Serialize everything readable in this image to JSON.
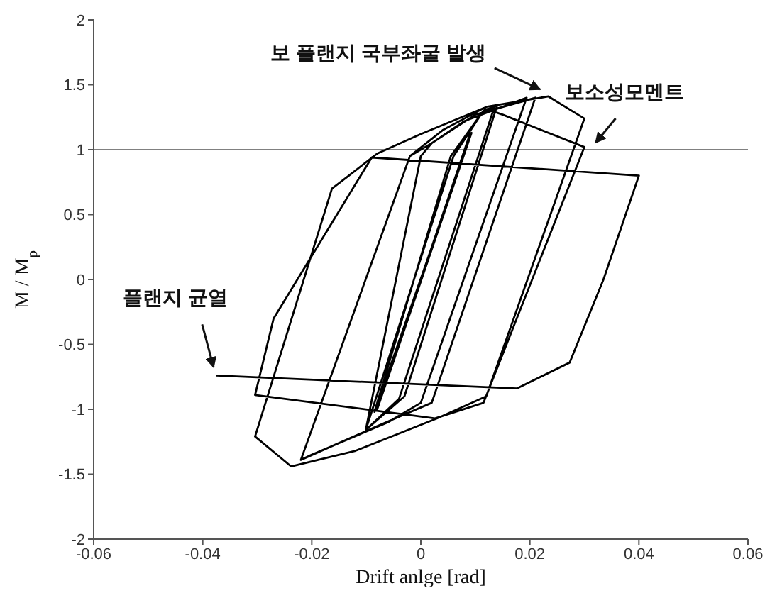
{
  "chart_data": {
    "type": "line",
    "xlabel": "Drift anlge [rad]",
    "ylabel": "M / M$_{p}$",
    "xlim": [
      -0.06,
      0.06
    ],
    "xticks": [
      -0.06,
      -0.04,
      -0.02,
      0,
      0.02,
      0.04,
      0.06
    ],
    "ylim": [
      -2,
      2
    ],
    "yticks": [
      -2,
      -1.5,
      -1,
      -0.5,
      0,
      0.5,
      1,
      1.5,
      2
    ],
    "marker": "none",
    "line_style": "solid",
    "ref_lines": [
      {
        "axis": "y",
        "value": 1,
        "color": "#808080"
      }
    ],
    "annotations": [
      {
        "text": "보 플랜지 국부좌굴 발생",
        "x": 0.0234,
        "y": 1.41
      },
      {
        "text": "보소성모멘트",
        "x": 0.03,
        "y": 1
      },
      {
        "text": "플랜지 균열",
        "x": -0.0375,
        "y": -0.74
      }
    ],
    "x": [
      0,
      0.009,
      -0.008,
      0.009,
      -0.008,
      0.0093,
      -0.0085,
      0.0055,
      0.0115,
      0.0135,
      -0.004,
      -0.0101,
      0.006,
      0.0115,
      0.014,
      -0.003,
      -0.0101,
      0,
      0.002,
      0.008,
      0.0194,
      0,
      -0.006,
      -0.02,
      -0.022,
      -0.002,
      0.002,
      0.01,
      0.021,
      0.002,
      -0.008,
      -0.022,
      -0.002,
      0.004,
      0.012,
      0.0234,
      0.03,
      0.012,
      0.003,
      -0.012,
      -0.0238,
      -0.0304,
      -0.0163,
      -0.0132,
      -0.008,
      0,
      0.0115,
      0.015,
      0.03,
      0.0115,
      0.0026,
      -0.0304,
      -0.027,
      -0.009,
      0.04,
      0.0335,
      0.0273,
      0.0176,
      -0.0375
    ],
    "series": [
      {
        "color": "#000000",
        "values": [
          0,
          1.12,
          -1,
          1.12,
          -1,
          1.13,
          -1.02,
          0.95,
          1.3,
          1.33,
          -0.92,
          -1.16,
          0.95,
          1.3,
          1.34,
          -0.9,
          -1.16,
          0.95,
          1.05,
          1.22,
          1.4,
          -0.95,
          -1.1,
          -1.35,
          -1.39,
          0.95,
          1.05,
          1.27,
          1.4,
          -0.95,
          -1.13,
          -1.39,
          0.95,
          1.15,
          1.33,
          1.41,
          1.24,
          -0.9,
          -1.07,
          -1.32,
          -1.44,
          -1.21,
          0.7,
          0.8,
          0.97,
          1.12,
          1.32,
          1.27,
          1.02,
          -0.95,
          -1.07,
          -0.89,
          -0.3,
          0.94,
          0.8,
          0,
          -0.64,
          -0.84,
          -0.74
        ]
      }
    ]
  }
}
